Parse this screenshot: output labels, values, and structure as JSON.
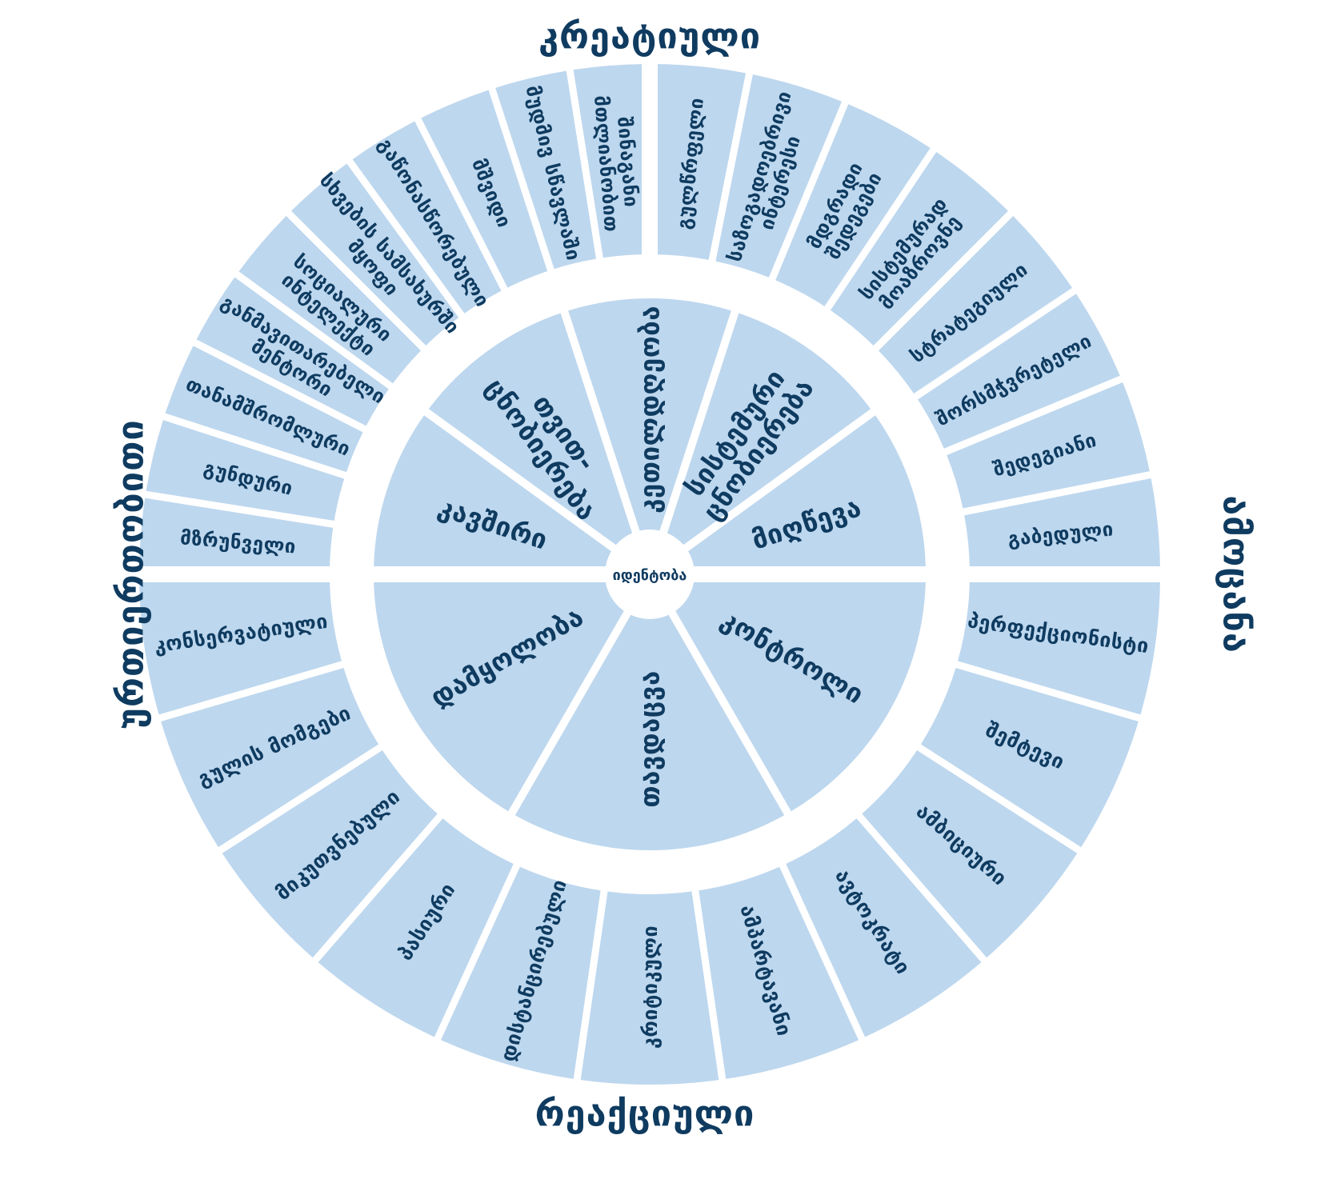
{
  "axes": {
    "top": "კრეატიული",
    "right": "ამოცანა",
    "bottom": "რეაქციული",
    "left": "ურთიერთობითი"
  },
  "center_label": "იდენტობა",
  "colors": {
    "segment_fill": "#BDD7EE",
    "text": "#0F3B60",
    "background": "#FFFFFF"
  },
  "inner_ring": {
    "top_half": [
      {
        "label": "კავშირი",
        "lines": [
          "კავშირი"
        ]
      },
      {
        "label": "თვით-ცნობიერება",
        "lines": [
          "თვით-",
          "ცნობიერება"
        ]
      },
      {
        "label": "კეთილდღეობა",
        "lines": [
          "კეთილდღეობა"
        ]
      },
      {
        "label": "სისტემური ცნობიერება",
        "lines": [
          "სისტემური",
          "ცნობიერება"
        ]
      },
      {
        "label": "მიღწევა",
        "lines": [
          "მიღწევა"
        ]
      }
    ],
    "bottom_half": [
      {
        "label": "კონტროლი",
        "lines": [
          "კონტროლი"
        ]
      },
      {
        "label": "თავდაცვა",
        "lines": [
          "თავდაცვა"
        ]
      },
      {
        "label": "დამყოლობა",
        "lines": [
          "დამყოლობა"
        ]
      }
    ]
  },
  "outer_ring": {
    "creative_left": [
      {
        "label": "მზრუნველი",
        "lines": [
          "მზრუნველი"
        ]
      },
      {
        "label": "გუნდური",
        "lines": [
          "გუნდური"
        ]
      },
      {
        "label": "თანამშრომლური",
        "lines": [
          "თანამშრომლური"
        ]
      },
      {
        "label": "განმავითარებელი მენტორი",
        "lines": [
          "განმავითარებელი",
          "მენტორი"
        ]
      },
      {
        "label": "სოციალური ინტელექტი",
        "lines": [
          "სოციალური",
          "ინტელექტი"
        ]
      },
      {
        "label": "სხვების სამსახურში მყოფი",
        "lines": [
          "სხვების სამსახურში",
          "მყოფი"
        ]
      },
      {
        "label": "გაწონასწორებული",
        "lines": [
          "გაწონასწორებული"
        ]
      },
      {
        "label": "მშვიდი",
        "lines": [
          "მშვიდი"
        ]
      },
      {
        "label": "მუდმივ სწავლაში",
        "lines": [
          "მუდმივ სწავლაში"
        ]
      },
      {
        "label": "შინაგანი მთლიანობით",
        "lines": [
          "შინაგანი",
          "მთლიანობით"
        ]
      }
    ],
    "creative_right": [
      {
        "label": "გულწრფელი",
        "lines": [
          "გულწრფელი"
        ]
      },
      {
        "label": "საზოგადოებრივი ინტერესი",
        "lines": [
          "საზოგადოებრივი",
          "ინტერესი"
        ]
      },
      {
        "label": "მდგრადი შედეგები",
        "lines": [
          "მდგრადი",
          "შედეგები"
        ]
      },
      {
        "label": "სისტემურად მოაზროვნე",
        "lines": [
          "სისტემურად",
          "მოაზროვნე"
        ]
      },
      {
        "label": "სტრატეგიული",
        "lines": [
          "სტრატეგიული"
        ]
      },
      {
        "label": "შორსმჭვრეტელი",
        "lines": [
          "შორსმჭვრეტელი"
        ]
      },
      {
        "label": "შედეგიანი",
        "lines": [
          "შედეგიანი"
        ]
      },
      {
        "label": "გაბედული",
        "lines": [
          "გაბედული"
        ]
      }
    ],
    "reactive": [
      {
        "label": "პერფექციონისტი",
        "lines": [
          "პერფექციონისტი"
        ]
      },
      {
        "label": "შემტევი",
        "lines": [
          "შემტევი"
        ]
      },
      {
        "label": "ამბიციური",
        "lines": [
          "ამბიციური"
        ]
      },
      {
        "label": "ავტოკრატი",
        "lines": [
          "ავტოკრატი"
        ]
      },
      {
        "label": "ამპარტავანი",
        "lines": [
          "ამპარტავანი"
        ]
      },
      {
        "label": "კრიტიკული",
        "lines": [
          "კრიტიკული"
        ]
      },
      {
        "label": "დისტანცირებული",
        "lines": [
          "დისტანცირებული"
        ]
      },
      {
        "label": "პასიური",
        "lines": [
          "პასიური"
        ]
      },
      {
        "label": "მიკუთვნებული",
        "lines": [
          "მიკუთვნებული"
        ]
      },
      {
        "label": "გულის მომგები",
        "lines": [
          "გულის მომგები"
        ]
      },
      {
        "label": "კონსერვატიული",
        "lines": [
          "კონსერვატიული"
        ]
      }
    ]
  }
}
